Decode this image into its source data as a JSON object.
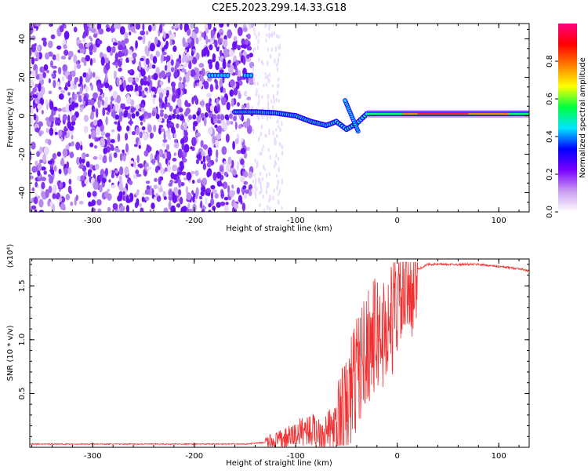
{
  "title": "C2E5.2023.299.14.33.G18",
  "chart_data": [
    {
      "type": "heatmap",
      "description": "Spectrogram of received signal frequency vs height of straight line",
      "xlabel": "Height of straight line (km)",
      "ylabel": "Frequency (Hz)",
      "xlim": [
        -362,
        130
      ],
      "ylim": [
        -50,
        48
      ],
      "x_ticks": [
        -300,
        -200,
        -100,
        0,
        100
      ],
      "y_ticks": [
        -40,
        -20,
        0,
        20,
        40
      ],
      "colorbar": {
        "label": "Normalized spectral amplitude",
        "range": [
          0,
          1
        ],
        "ticks": [
          "0.0",
          "0.2",
          "0.4",
          "0.6",
          "0.8"
        ],
        "colormap": [
          "#ffffff",
          "#c89cf0",
          "#7a00ff",
          "#0000ff",
          "#00e5ff",
          "#00ff40",
          "#ffff00",
          "#ff7f00",
          "#ff0000",
          "#ff0080"
        ]
      },
      "features": [
        {
          "name": "carrier trace",
          "x": [
            -160,
            -140,
            -120,
            -100,
            -85,
            -70,
            -60,
            -50,
            -40,
            -30,
            0,
            50,
            100,
            130
          ],
          "y": [
            2,
            2,
            1.5,
            0,
            -3,
            -5,
            -3,
            -7,
            -4,
            1,
            1,
            1,
            1,
            1
          ]
        }
      ]
    },
    {
      "type": "line",
      "xlabel": "Height of straight line (km)",
      "ylabel": "SNR (10 * v/v)",
      "y_multiplier": "(x10⁴)",
      "xlim": [
        -362,
        130
      ],
      "ylim": [
        0,
        1.75
      ],
      "x_ticks": [
        -300,
        -200,
        -100,
        0,
        100
      ],
      "y_ticks": [
        "0.5",
        "1.0",
        "1.5"
      ],
      "y_tick_values": [
        0.5,
        1.0,
        1.5
      ],
      "series": [
        {
          "color": "#f03030",
          "x": [
            -362,
            -300,
            -200,
            -150,
            -125,
            -110,
            -100,
            -90,
            -80,
            -70,
            -60,
            -50,
            -45,
            -40,
            -35,
            -30,
            -25,
            -20,
            -15,
            -10,
            -5,
            0,
            10,
            20,
            30,
            40,
            60,
            80,
            100,
            110,
            120,
            130
          ],
          "y": [
            0.03,
            0.03,
            0.03,
            0.03,
            0.05,
            0.08,
            0.12,
            0.17,
            0.15,
            0.15,
            0.18,
            0.3,
            0.55,
            0.7,
            0.8,
            0.95,
            1.0,
            1.05,
            1.05,
            1.1,
            1.2,
            1.35,
            1.5,
            1.65,
            1.7,
            1.7,
            1.7,
            1.7,
            1.68,
            1.67,
            1.66,
            1.64
          ]
        }
      ]
    }
  ]
}
